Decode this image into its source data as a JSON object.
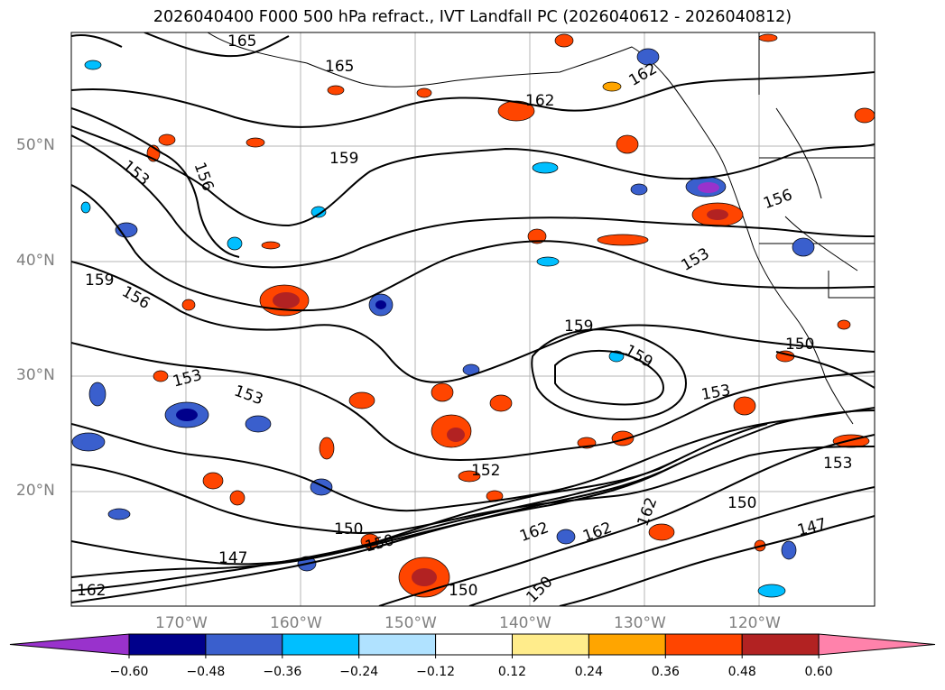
{
  "title": "2026040400 F000 500 hPa refract., IVT Landfall PC (2026040612 - 2026040812)",
  "map": {
    "lat_labels": [
      "50°N",
      "40°N",
      "30°N",
      "20°N"
    ],
    "lon_labels": [
      "170°W",
      "160°W",
      "150°W",
      "140°W",
      "130°W",
      "120°W"
    ],
    "contour_labels": [
      "165",
      "165",
      "162",
      "159",
      "156",
      "153",
      "159",
      "156",
      "153",
      "153",
      "159",
      "159",
      "153",
      "156",
      "153",
      "150",
      "152",
      "150",
      "150",
      "147",
      "162",
      "162",
      "162",
      "147",
      "150",
      "150",
      "153",
      "150",
      "162",
      "162"
    ]
  },
  "colorbar": {
    "tick_labels": [
      "−0.60",
      "−0.48",
      "−0.36",
      "−0.24",
      "−0.12",
      "0.12",
      "0.24",
      "0.36",
      "0.48",
      "0.60"
    ],
    "colors": [
      "#9932cc",
      "#00008b",
      "#3a5fcd",
      "#00bfff",
      "#b0e2ff",
      "#ffffff",
      "#ffec8b",
      "#ffa500",
      "#ff4500",
      "#b22222",
      "#ff82ab"
    ]
  }
}
